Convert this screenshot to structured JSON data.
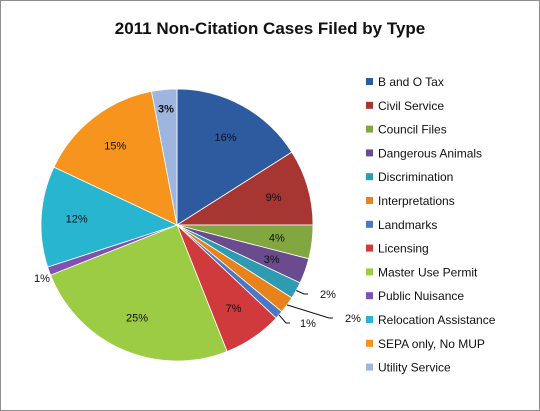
{
  "chart_data": {
    "type": "pie",
    "title": "2011 Non-Citation Cases Filed by Type",
    "legend_position": "right",
    "categories": [
      "B and O Tax",
      "Civil Service",
      "Council Files",
      "Dangerous Animals",
      "Discrimination",
      "Interpretations",
      "Landmarks",
      "Licensing",
      "Master Use Permit",
      "Public Nuisance",
      "Relocation Assistance",
      "SEPA only, No MUP",
      "Utility Service"
    ],
    "values": [
      16,
      9,
      4,
      3,
      2,
      2,
      1,
      7,
      25,
      1,
      12,
      15,
      3
    ],
    "data_labels": [
      "16%",
      "9%",
      "4%",
      "3%",
      "2%",
      "2%",
      "1%",
      "7%",
      "25%",
      "1%",
      "12%",
      "15%",
      "3%"
    ],
    "colors": [
      "#2e5aa0",
      "#a73532",
      "#82a640",
      "#6a4c8e",
      "#2e9bb3",
      "#e8821c",
      "#4a78c4",
      "#d03a3c",
      "#9ccc44",
      "#7d52b0",
      "#27b5d0",
      "#f7941e",
      "#9db5df"
    ]
  }
}
